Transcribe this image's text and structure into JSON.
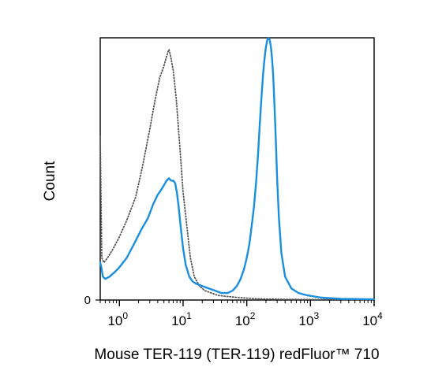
{
  "chart_data": {
    "type": "line",
    "xlabel": "Mouse TER-119 (TER-119) redFluor™ 710",
    "ylabel": "Count",
    "x_scale": "log",
    "xlim": [
      0.5,
      10000
    ],
    "ylim": [
      0,
      110
    ],
    "grid": false,
    "x_ticks": [
      {
        "value": 1,
        "base": "10",
        "exp": "0"
      },
      {
        "value": 10,
        "base": "10",
        "exp": "1"
      },
      {
        "value": 100,
        "base": "10",
        "exp": "2"
      },
      {
        "value": 1000,
        "base": "10",
        "exp": "3"
      },
      {
        "value": 10000,
        "base": "10",
        "exp": "4"
      }
    ],
    "y_ticks": [
      {
        "value": 0,
        "label": "0"
      }
    ],
    "series": [
      {
        "style": "dotted",
        "color": "#555555",
        "x": [
          0.5,
          0.53,
          0.57,
          0.65,
          0.8,
          1.0,
          1.3,
          1.8,
          2.3,
          3.0,
          3.6,
          4.3,
          5.0,
          5.5,
          5.8,
          6.0,
          6.4,
          7.0,
          7.8,
          8.8,
          10,
          11.5,
          13,
          15,
          18,
          22,
          28,
          35,
          50,
          80,
          150,
          400,
          1500,
          10000
        ],
        "y": [
          70,
          18,
          16,
          18,
          22,
          27,
          34,
          44,
          57,
          73,
          85,
          95,
          100,
          104,
          106,
          107,
          104,
          98,
          86,
          67,
          46,
          31,
          18,
          10,
          6,
          4,
          3,
          2,
          1.5,
          1,
          0.5,
          0.3,
          0.2,
          0.2
        ]
      },
      {
        "style": "solid",
        "color": "#1a8fe0",
        "x": [
          0.5,
          0.52,
          0.55,
          0.6,
          0.7,
          0.85,
          1.0,
          1.3,
          1.7,
          2.2,
          2.8,
          3.4,
          4.0,
          4.5,
          5.0,
          5.5,
          6.0,
          6.5,
          7.0,
          7.5,
          8.0,
          8.5,
          9.2,
          10,
          11,
          12.5,
          14,
          16,
          20,
          25,
          32,
          40,
          50,
          60,
          70,
          80,
          90,
          100,
          110,
          120,
          130,
          140,
          150,
          160,
          170,
          180,
          190,
          200,
          210,
          220,
          230,
          240,
          250,
          260,
          270,
          280,
          290,
          300,
          320,
          350,
          400,
          500,
          650,
          900,
          1500,
          3000,
          10000
        ],
        "y": [
          16,
          14,
          10,
          9,
          10,
          12,
          14,
          18,
          24,
          30,
          35,
          41,
          45,
          47,
          49,
          51,
          52,
          51,
          51,
          50,
          46,
          40,
          31,
          22,
          15,
          10,
          8,
          7,
          6,
          5,
          4,
          3,
          3,
          4,
          6,
          9,
          13,
          18,
          24,
          32,
          40,
          50,
          62,
          75,
          86,
          96,
          103,
          108,
          111,
          112,
          111,
          108,
          103,
          96,
          86,
          75,
          64,
          52,
          35,
          20,
          10,
          5,
          3,
          2,
          1,
          0.5,
          0.3
        ]
      }
    ]
  }
}
